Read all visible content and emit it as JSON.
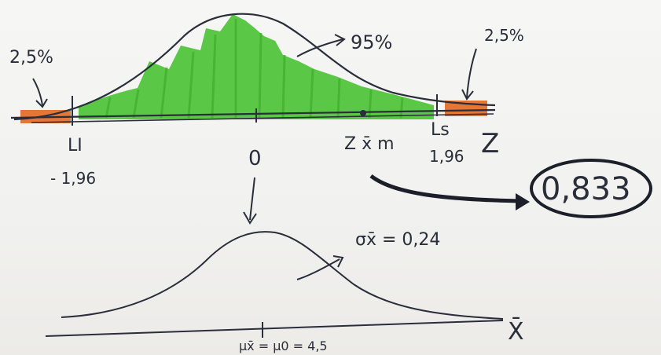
{
  "top_diagram": {
    "left_tail_pct": "2,5%",
    "right_tail_pct": "2,5%",
    "center_pct": "95%",
    "li_label": "LI",
    "li_value": "- 1,96",
    "zero_label": "0",
    "zstat_label": "Z x̄ m",
    "ls_label": "Ls",
    "ls_value": "1,96",
    "z_axis_label": "Z",
    "circled_value": "0,833"
  },
  "bottom_diagram": {
    "sigma_label": "σx̄ = 0,24",
    "mean_label": "μx̄ = μ0 = 4,5",
    "x_axis_label": "X̄"
  },
  "colors": {
    "ink": "#2a2d3a",
    "fill_green": "#52c43c",
    "tail_orange": "#e67635",
    "paper": "#f4f4f2"
  }
}
